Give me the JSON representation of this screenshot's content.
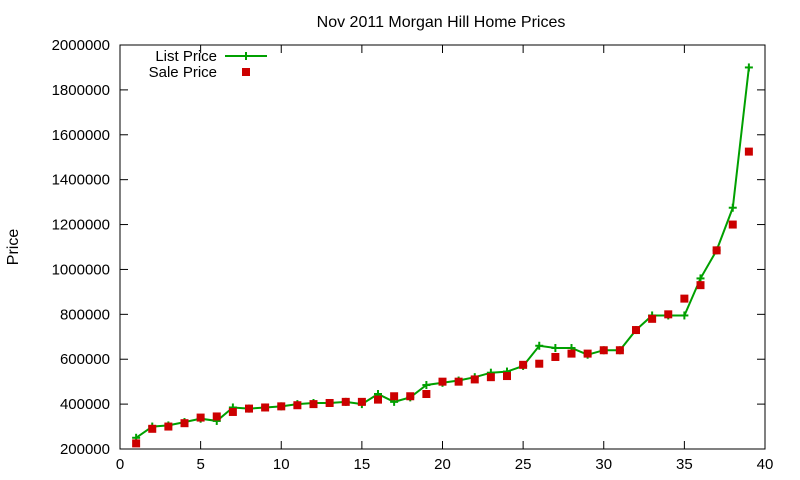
{
  "chart_data": {
    "type": "line",
    "title": "Nov 2011 Morgan Hill Home Prices",
    "xlabel": "",
    "ylabel": "Price",
    "xlim": [
      0,
      40
    ],
    "ylim": [
      200000,
      2000000
    ],
    "x_ticks": [
      0,
      5,
      10,
      15,
      20,
      25,
      30,
      35,
      40
    ],
    "y_ticks": [
      200000,
      400000,
      600000,
      800000,
      1000000,
      1200000,
      1400000,
      1600000,
      1800000,
      2000000
    ],
    "grid": false,
    "legend_position": "top-left",
    "series": [
      {
        "name": "List Price",
        "style": "line-with-plus-markers",
        "color": "#00a000",
        "x": [
          1,
          2,
          3,
          4,
          5,
          6,
          7,
          8,
          9,
          10,
          11,
          12,
          13,
          14,
          15,
          16,
          17,
          18,
          19,
          20,
          21,
          22,
          23,
          24,
          25,
          26,
          27,
          28,
          29,
          30,
          31,
          32,
          33,
          34,
          35,
          36,
          37,
          38,
          39
        ],
        "values": [
          250000,
          300000,
          305000,
          320000,
          335000,
          325000,
          385000,
          380000,
          385000,
          390000,
          400000,
          405000,
          405000,
          410000,
          400000,
          445000,
          410000,
          430000,
          485000,
          495000,
          505000,
          520000,
          540000,
          545000,
          570000,
          660000,
          650000,
          650000,
          620000,
          640000,
          640000,
          730000,
          795000,
          795000,
          795000,
          960000,
          1085000,
          1275000,
          1900000
        ]
      },
      {
        "name": "Sale Price",
        "style": "square-markers",
        "color": "#cc0000",
        "x": [
          1,
          2,
          3,
          4,
          5,
          6,
          7,
          8,
          9,
          10,
          11,
          12,
          13,
          14,
          15,
          16,
          17,
          18,
          19,
          20,
          21,
          22,
          23,
          24,
          25,
          26,
          27,
          28,
          29,
          30,
          31,
          32,
          33,
          34,
          35,
          36,
          37,
          38,
          39
        ],
        "values": [
          225000,
          290000,
          300000,
          315000,
          340000,
          345000,
          365000,
          380000,
          385000,
          390000,
          395000,
          400000,
          405000,
          410000,
          410000,
          420000,
          435000,
          435000,
          445000,
          500000,
          500000,
          510000,
          520000,
          525000,
          575000,
          580000,
          610000,
          625000,
          625000,
          640000,
          640000,
          730000,
          780000,
          800000,
          870000,
          930000,
          1085000,
          1200000,
          1525000
        ]
      }
    ]
  }
}
